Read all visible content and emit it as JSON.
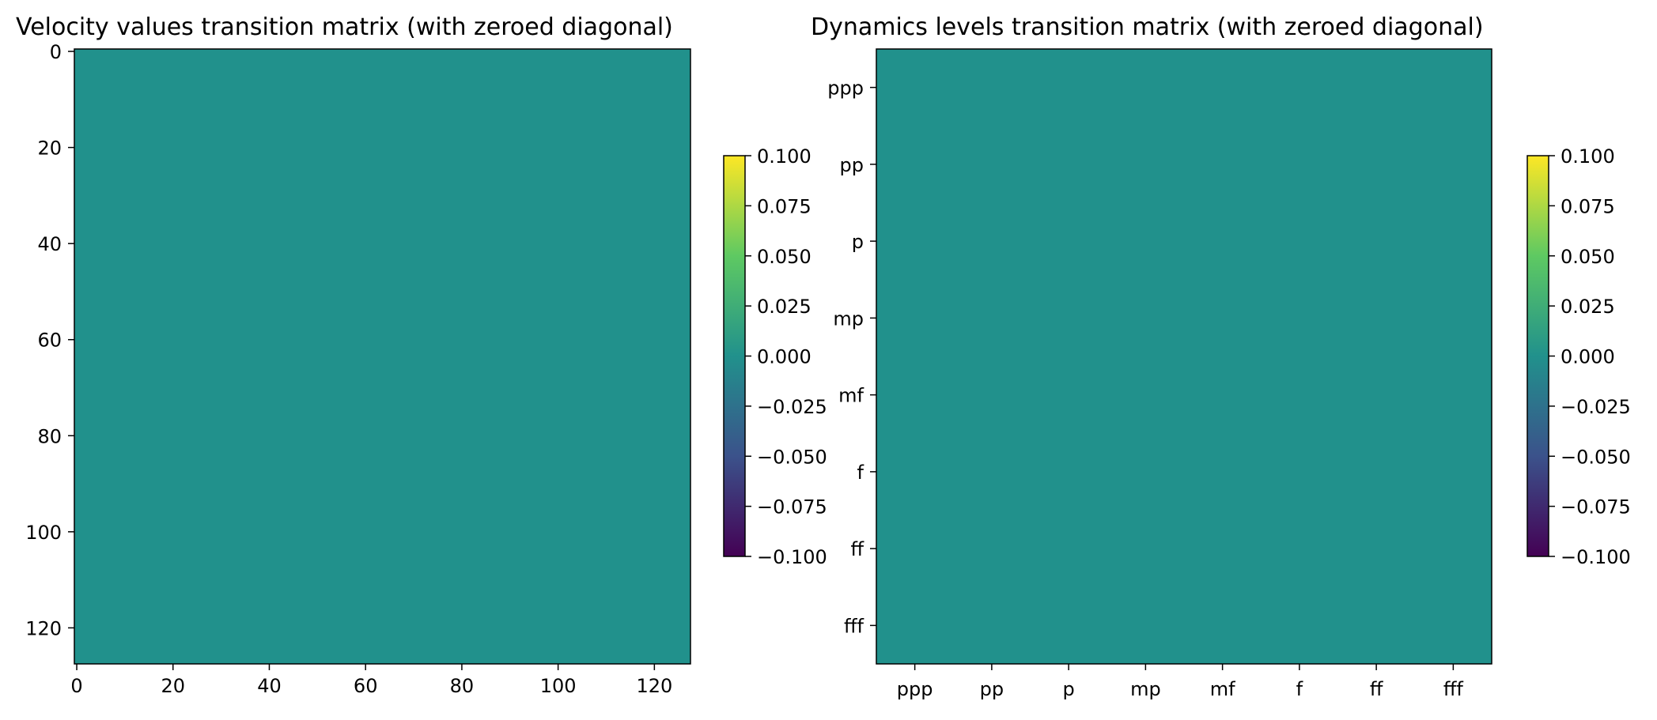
{
  "chart_data": [
    {
      "type": "heatmap",
      "title": "Velocity values transition matrix (with zeroed diagonal)",
      "x_ticks": [
        0,
        20,
        40,
        60,
        80,
        100,
        120
      ],
      "y_ticks": [
        0,
        20,
        40,
        60,
        80,
        100,
        120
      ],
      "xlim": [
        -0.5,
        127.5
      ],
      "ylim": [
        127.5,
        -0.5
      ],
      "matrix_size": 128,
      "fill_value": 0.0,
      "values_note": "all cells 0",
      "colormap": "viridis",
      "colorbar": {
        "range": [
          -0.1,
          0.1
        ],
        "tick_values": [
          0.1,
          0.075,
          0.05,
          0.025,
          0.0,
          -0.025,
          -0.05,
          -0.075,
          -0.1
        ],
        "tick_labels": [
          "0.100",
          "0.075",
          "0.050",
          "0.025",
          "0.000",
          "−0.025",
          "−0.050",
          "−0.075",
          "−0.100"
        ]
      }
    },
    {
      "type": "heatmap",
      "title": "Dynamics levels transition matrix (with zeroed diagonal)",
      "categories": [
        "ppp",
        "pp",
        "p",
        "mp",
        "mf",
        "f",
        "ff",
        "fff"
      ],
      "x_ticks": [
        "ppp",
        "pp",
        "p",
        "mp",
        "mf",
        "f",
        "ff",
        "fff"
      ],
      "y_ticks": [
        "ppp",
        "pp",
        "p",
        "mp",
        "mf",
        "f",
        "ff",
        "fff"
      ],
      "matrix_size": 8,
      "fill_value": 0.0,
      "values_note": "all cells 0",
      "colormap": "viridis",
      "colorbar": {
        "range": [
          -0.1,
          0.1
        ],
        "tick_values": [
          0.1,
          0.075,
          0.05,
          0.025,
          0.0,
          -0.025,
          -0.05,
          -0.075,
          -0.1
        ],
        "tick_labels": [
          "0.100",
          "0.075",
          "0.050",
          "0.025",
          "0.000",
          "−0.025",
          "−0.050",
          "−0.075",
          "−0.100"
        ]
      }
    }
  ],
  "colors": {
    "zero_value_fill": "#21918c",
    "viridis_stops": [
      "#440154",
      "#3b528b",
      "#21918c",
      "#5ec962",
      "#fde725"
    ]
  }
}
